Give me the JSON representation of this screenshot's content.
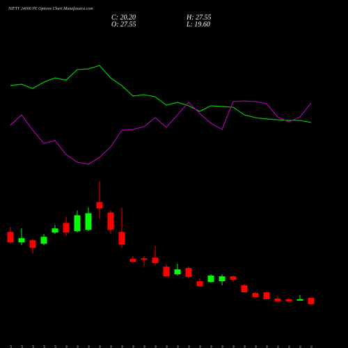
{
  "chart_data": {
    "type": "candlestick",
    "title": "NIFTY 24000 PE Options Chart Munafasutra.com",
    "info": {
      "close": "C: 20.20",
      "open": "O: 27.55",
      "high": "H: 27.55",
      "low": "L: 19.60"
    },
    "categories": [
      "27 Oct",
      "28 Oct",
      "29 Oct",
      "30 Oct",
      "31 Oct",
      "03 Nov",
      "04 Nov",
      "06 Nov",
      "07 Nov",
      "10 Nov",
      "11 Nov",
      "12 Nov",
      "13 Nov",
      "14 Nov",
      "17 Nov",
      "18 Nov",
      "19 Nov",
      "20 Nov",
      "21 Nov",
      "24 Nov",
      "25 Nov",
      "26 Nov",
      "27 Nov",
      "28 Nov",
      "01 Dec",
      "02 Dec",
      "03 Dec",
      "04 Dec"
    ],
    "open": [
      105.2,
      92.9,
      95.4,
      91.3,
      104.4,
      115.8,
      106.0,
      107.6,
      140.3,
      128.0,
      105.2,
      73.3,
      74.1,
      74.9,
      64.3,
      55.3,
      62.7,
      47.2,
      46.3,
      47.2,
      52.9,
      42.3,
      33.3,
      34.1,
      26.7,
      25.9,
      24.3,
      27.55
    ],
    "high": [
      110.9,
      109.3,
      97.0,
      102.7,
      113.3,
      123.1,
      130.5,
      133.8,
      164.8,
      130.5,
      133.8,
      76.6,
      76.6,
      88.8,
      66.8,
      67.6,
      64.3,
      50.4,
      55.3,
      55.3,
      53.7,
      43.9,
      34.1,
      34.9,
      29.2,
      27.6,
      30.8,
      27.55
    ],
    "low": [
      91.3,
      89.6,
      79.8,
      89.6,
      102.7,
      100.3,
      104.4,
      106.0,
      120.7,
      102.7,
      86.4,
      69.2,
      65.1,
      65.9,
      52.1,
      53.7,
      51.3,
      41.4,
      45.5,
      42.3,
      46.3,
      34.1,
      28.4,
      25.9,
      23.5,
      22.7,
      24.3,
      19.6
    ],
    "close": [
      92.9,
      97.8,
      86.4,
      99.4,
      109.3,
      104.4,
      124.8,
      127.2,
      132.9,
      107.6,
      90.5,
      70.0,
      72.5,
      68.4,
      52.9,
      61.1,
      52.1,
      41.4,
      53.7,
      52.9,
      48.8,
      34.1,
      28.4,
      25.9,
      23.5,
      23.5,
      25.9,
      20.2
    ],
    "up_color": "#00ff00",
    "down_color": "#ff0000",
    "ylim": [
      10,
      175
    ],
    "y2lim": [
      0,
      100
    ],
    "lines": [
      {
        "color": "#00cc00",
        "axis": "y2",
        "values": [
          78,
          79.3,
          75.3,
          81.3,
          85.3,
          83.3,
          93.3,
          94,
          97.3,
          85.3,
          78,
          68,
          69.3,
          67.3,
          59.3,
          62,
          58.7,
          53.3,
          58.7,
          58,
          57.3,
          50,
          47.3,
          46,
          45.3,
          44.7,
          44.7,
          42.7
        ]
      },
      {
        "color": "#b000b0",
        "axis": "y2",
        "values": [
          40,
          50,
          35.3,
          22.7,
          25.3,
          12,
          4.7,
          2.7,
          9.3,
          19.3,
          35.3,
          36,
          38.7,
          47.3,
          38,
          50,
          62,
          51.3,
          42,
          36,
          62.7,
          63.3,
          62.7,
          60.7,
          48,
          43.3,
          48,
          61.3
        ]
      }
    ]
  }
}
